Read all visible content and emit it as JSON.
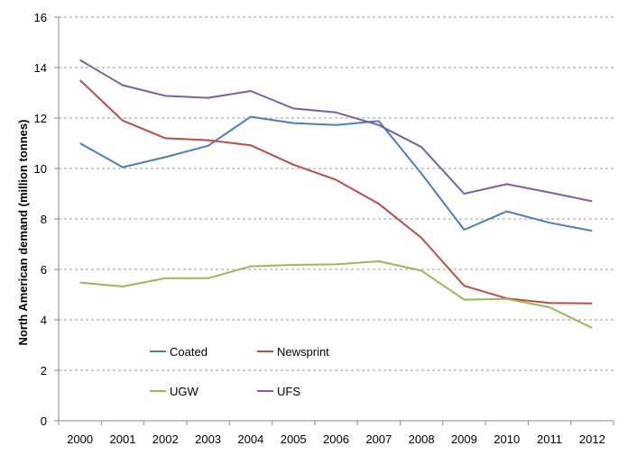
{
  "chart_data": {
    "type": "line",
    "title": "",
    "xlabel": "",
    "ylabel": "North American demand (million tonnes)",
    "x": [
      "2000",
      "2001",
      "2002",
      "2003",
      "2004",
      "2005",
      "2006",
      "2007",
      "2008",
      "2009",
      "2010",
      "2011",
      "2012"
    ],
    "ylim": [
      0,
      16
    ],
    "yticks": [
      "0",
      "2",
      "4",
      "6",
      "8",
      "10",
      "12",
      "14",
      "16"
    ],
    "grid": "horizontal dashed",
    "legend_position": "lower-left inside plot",
    "series": [
      {
        "name": "Coated",
        "color": "#4a7ebb",
        "values": [
          11.0,
          10.05,
          10.45,
          10.9,
          12.05,
          11.8,
          11.72,
          11.88,
          9.8,
          7.57,
          8.3,
          7.85,
          7.53
        ]
      },
      {
        "name": "Newsprint",
        "color": "#be4b48",
        "values": [
          13.5,
          11.9,
          11.2,
          11.12,
          10.92,
          10.15,
          9.55,
          8.6,
          7.25,
          5.35,
          4.85,
          4.67,
          4.65
        ]
      },
      {
        "name": "UGW",
        "color": "#98b954",
        "values": [
          5.48,
          5.32,
          5.65,
          5.65,
          6.12,
          6.18,
          6.2,
          6.32,
          5.95,
          4.8,
          4.83,
          4.5,
          3.68
        ]
      },
      {
        "name": "UFS",
        "color": "#7d60a0",
        "values": [
          14.3,
          13.3,
          12.88,
          12.8,
          13.07,
          12.38,
          12.22,
          11.72,
          10.85,
          9.0,
          9.38,
          9.05,
          8.7
        ]
      }
    ]
  }
}
